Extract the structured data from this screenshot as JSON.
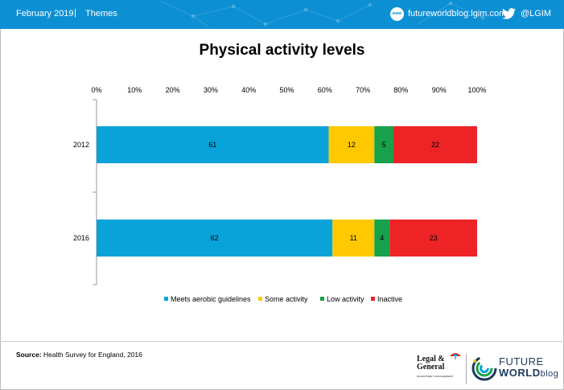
{
  "header": {
    "date": "February 2019",
    "separator": "|",
    "section": "Themes",
    "website": "futureworldblog.lgim.com",
    "globe_label": "www",
    "twitter": "@LGIM",
    "website_icon": "globe-icon",
    "twitter_icon": "twitter-bird-icon",
    "bar_color": "#0d8fd4"
  },
  "chart_data": {
    "type": "bar",
    "orientation": "horizontal",
    "stacked": true,
    "title": "Physical activity levels",
    "categories": [
      "2012",
      "2016"
    ],
    "series": [
      {
        "name": "Meets aerobic guidelines",
        "values": [
          61,
          62
        ],
        "color": "#0aa3d9"
      },
      {
        "name": "Some activity",
        "values": [
          12,
          11
        ],
        "color": "#ffc800"
      },
      {
        "name": "Low activity",
        "values": [
          5,
          4
        ],
        "color": "#17a14a"
      },
      {
        "name": "Inactive",
        "values": [
          22,
          23
        ],
        "color": "#ee2326"
      }
    ],
    "xlim": [
      0,
      100
    ],
    "x_ticks": [
      "0%",
      "10%",
      "20%",
      "30%",
      "40%",
      "50%",
      "60%",
      "70%",
      "80%",
      "90%",
      "100%"
    ],
    "axis_position": "top",
    "grid": false,
    "legend_position": "bottom"
  },
  "footer": {
    "source_label": "Source:",
    "source_text": "Health Survey for England, 2016",
    "lg_logo": {
      "line1": "Legal &",
      "line2": "General",
      "subline": "INVESTMENT MANAGEMENT"
    },
    "fw_logo": {
      "line1": "FUTURE",
      "line2_bold": "WORLD",
      "line2_light": "blog"
    }
  }
}
